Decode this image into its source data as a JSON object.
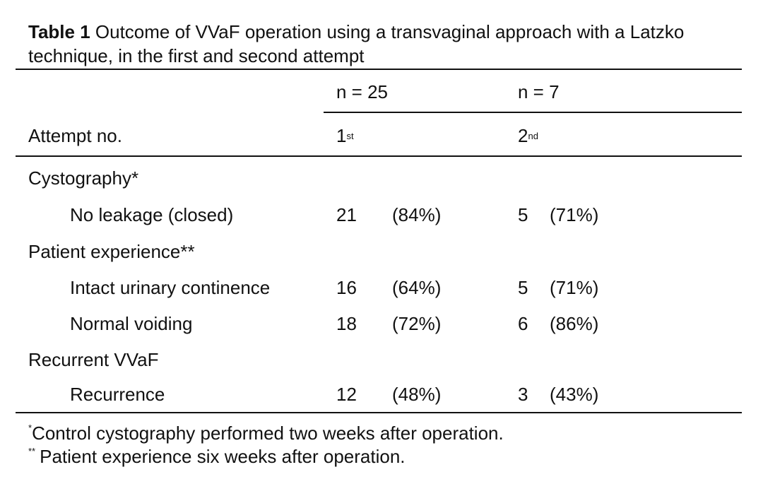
{
  "caption": {
    "label": "Table 1",
    "text": " Outcome of VVaF operation using a transvaginal approach with a Latzko technique, in the first and second attempt"
  },
  "header": {
    "n_first": "n = 25",
    "n_second": "n = 7",
    "attempt_label": "Attempt no.",
    "first_num": "1",
    "first_sup": "st",
    "second_num": "2",
    "second_sup": "nd"
  },
  "rows": [
    {
      "label": "Cystography*",
      "indent": false,
      "first_n": "",
      "first_pct": "",
      "second_n": "",
      "second_pct": ""
    },
    {
      "label": "No leakage (closed)",
      "indent": true,
      "first_n": "21",
      "first_pct": "(84%)",
      "second_n": "5",
      "second_pct": "(71%)"
    },
    {
      "label": "Patient experience**",
      "indent": false,
      "first_n": "",
      "first_pct": "",
      "second_n": "",
      "second_pct": ""
    },
    {
      "label": "Intact urinary continence",
      "indent": true,
      "first_n": "16",
      "first_pct": "(64%)",
      "second_n": "5",
      "second_pct": "(71%)"
    },
    {
      "label": "Normal voiding",
      "indent": true,
      "first_n": "18",
      "first_pct": "(72%)",
      "second_n": "6",
      "second_pct": "(86%)"
    },
    {
      "label": "Recurrent VVaF",
      "indent": false,
      "first_n": "",
      "first_pct": "",
      "second_n": "",
      "second_pct": ""
    },
    {
      "label": "Recurrence",
      "indent": true,
      "first_n": "12",
      "first_pct": "(48%)",
      "second_n": "3",
      "second_pct": "(43%)"
    }
  ],
  "footnotes": [
    {
      "mark": "*",
      "text": "Control cystography performed two weeks after operation."
    },
    {
      "mark": "**",
      "text": "Patient experience six weeks after operation."
    }
  ]
}
